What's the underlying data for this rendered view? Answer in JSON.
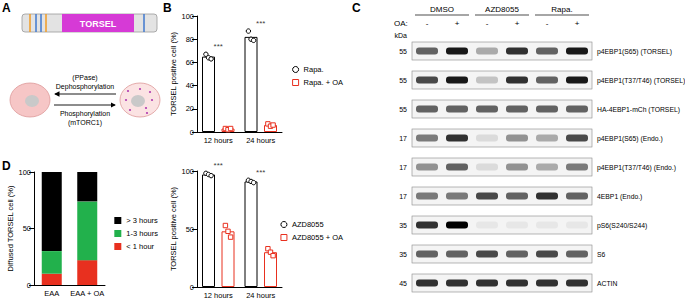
{
  "panel_labels": [
    "A",
    "B",
    "C",
    "D"
  ],
  "diagram": {
    "construct_label": "TORSEL",
    "top_arrow": [
      "(PPase)",
      "Dephosphorylation"
    ],
    "bottom_arrow": [
      "Phosphorylation",
      "(mTORC1)"
    ]
  },
  "chart_data": [
    {
      "type": "bar",
      "ylabel": "TORSEL positive cell (%)",
      "categories": [
        "12 hours",
        "24 hours"
      ],
      "ylim": [
        0,
        100
      ],
      "yticks": [
        0,
        20,
        40,
        60,
        80,
        100
      ],
      "grid": false,
      "legend": "right",
      "series": [
        {
          "name": "Rapa.",
          "color": "#000000",
          "marker": "circle",
          "values": [
            65,
            82
          ],
          "points": [
            [
              67,
              64,
              63
            ],
            [
              87,
              80,
              79
            ]
          ]
        },
        {
          "name": "Rapa. + OA",
          "color": "#e8301f",
          "marker": "rect",
          "values": [
            3,
            6
          ],
          "points": [
            [
              3,
              2,
              3
            ],
            [
              7,
              5,
              6
            ]
          ]
        }
      ],
      "annotations": [
        {
          "category": "12 hours",
          "text": "***"
        },
        {
          "category": "24 hours",
          "text": "***"
        }
      ]
    },
    {
      "type": "bar",
      "ylabel": "TORSEL positive cell (%)",
      "categories": [
        "12 hours",
        "24 hours"
      ],
      "ylim": [
        0,
        100
      ],
      "yticks": [
        0,
        50,
        100
      ],
      "grid": false,
      "legend": "right",
      "series": [
        {
          "name": "AZD8055",
          "color": "#000000",
          "marker": "circle",
          "values": [
            97,
            91
          ],
          "points": [
            [
              98,
              97,
              96
            ],
            [
              92,
              91,
              90
            ]
          ]
        },
        {
          "name": "AZD8055 + OA",
          "color": "#e8301f",
          "marker": "rect",
          "values": [
            48,
            30
          ],
          "points": [
            [
              53,
              48,
              43
            ],
            [
              33,
              30,
              27
            ]
          ]
        }
      ],
      "annotations": [
        {
          "category": "12 hours",
          "text": "***"
        },
        {
          "category": "24 hours",
          "text": "***"
        }
      ]
    },
    {
      "type": "bar",
      "ylabel": "Diffused TORSEL cell (%)",
      "categories": [
        "EAA",
        "EAA + OA"
      ],
      "ylim": [
        0,
        100
      ],
      "yticks": [
        0,
        50,
        100
      ],
      "grid": false,
      "legend": "right",
      "stacked": true,
      "series": [
        {
          "name": "< 1 hour",
          "color": "#e8301f",
          "values": [
            10,
            22
          ]
        },
        {
          "name": "1-3 hours",
          "color": "#22b14c",
          "values": [
            20,
            52
          ]
        },
        {
          "name": "> 3 hours",
          "color": "#000000",
          "values": [
            70,
            26
          ]
        }
      ]
    }
  ],
  "blot": {
    "column_groups": [
      "DMSO",
      "AZD8055",
      "Rapa."
    ],
    "treatment_label": "OA:",
    "treatment_marks": [
      "-",
      "+",
      "-",
      "+",
      "-",
      "+"
    ],
    "mw_header": "kDa",
    "rows": [
      {
        "label": "p4EBP1(S65) (TORSEL)",
        "kda": 55,
        "bands": [
          0.6,
          0.9,
          0.3,
          0.8,
          0.6,
          0.9
        ]
      },
      {
        "label": "p4EBP1(T37/T46) (TORSEL)",
        "kda": 55,
        "bands": [
          0.7,
          0.9,
          0.2,
          0.8,
          0.6,
          0.9
        ]
      },
      {
        "label": "HA-4EBP1-mCh (TORSEL)",
        "kda": 55,
        "bands": [
          0.6,
          0.6,
          0.6,
          0.6,
          0.6,
          0.6
        ]
      },
      {
        "label": "p4EBP1(S65) (Endo.)",
        "kda": 17,
        "bands": [
          0.5,
          0.8,
          0.1,
          0.4,
          0.3,
          0.7
        ]
      },
      {
        "label": "p4EBP1(T37/T46) (Endo.)",
        "kda": 17,
        "bands": [
          0.4,
          0.6,
          0.1,
          0.4,
          0.3,
          0.5
        ]
      },
      {
        "label": "4EBP1 (Endo.)",
        "kda": 17,
        "bands": [
          0.5,
          0.5,
          0.7,
          0.6,
          0.8,
          0.6
        ]
      },
      {
        "label": "pS6(S240/S244)",
        "kda": 35,
        "bands": [
          0.8,
          1.0,
          0.05,
          0.05,
          0.05,
          0.05
        ]
      },
      {
        "label": "S6",
        "kda": 35,
        "bands": [
          0.6,
          0.6,
          0.7,
          0.6,
          0.7,
          0.6
        ]
      },
      {
        "label": "ACTIN",
        "kda": 45,
        "bands": [
          0.8,
          0.8,
          0.8,
          0.8,
          0.8,
          0.8
        ]
      }
    ]
  }
}
